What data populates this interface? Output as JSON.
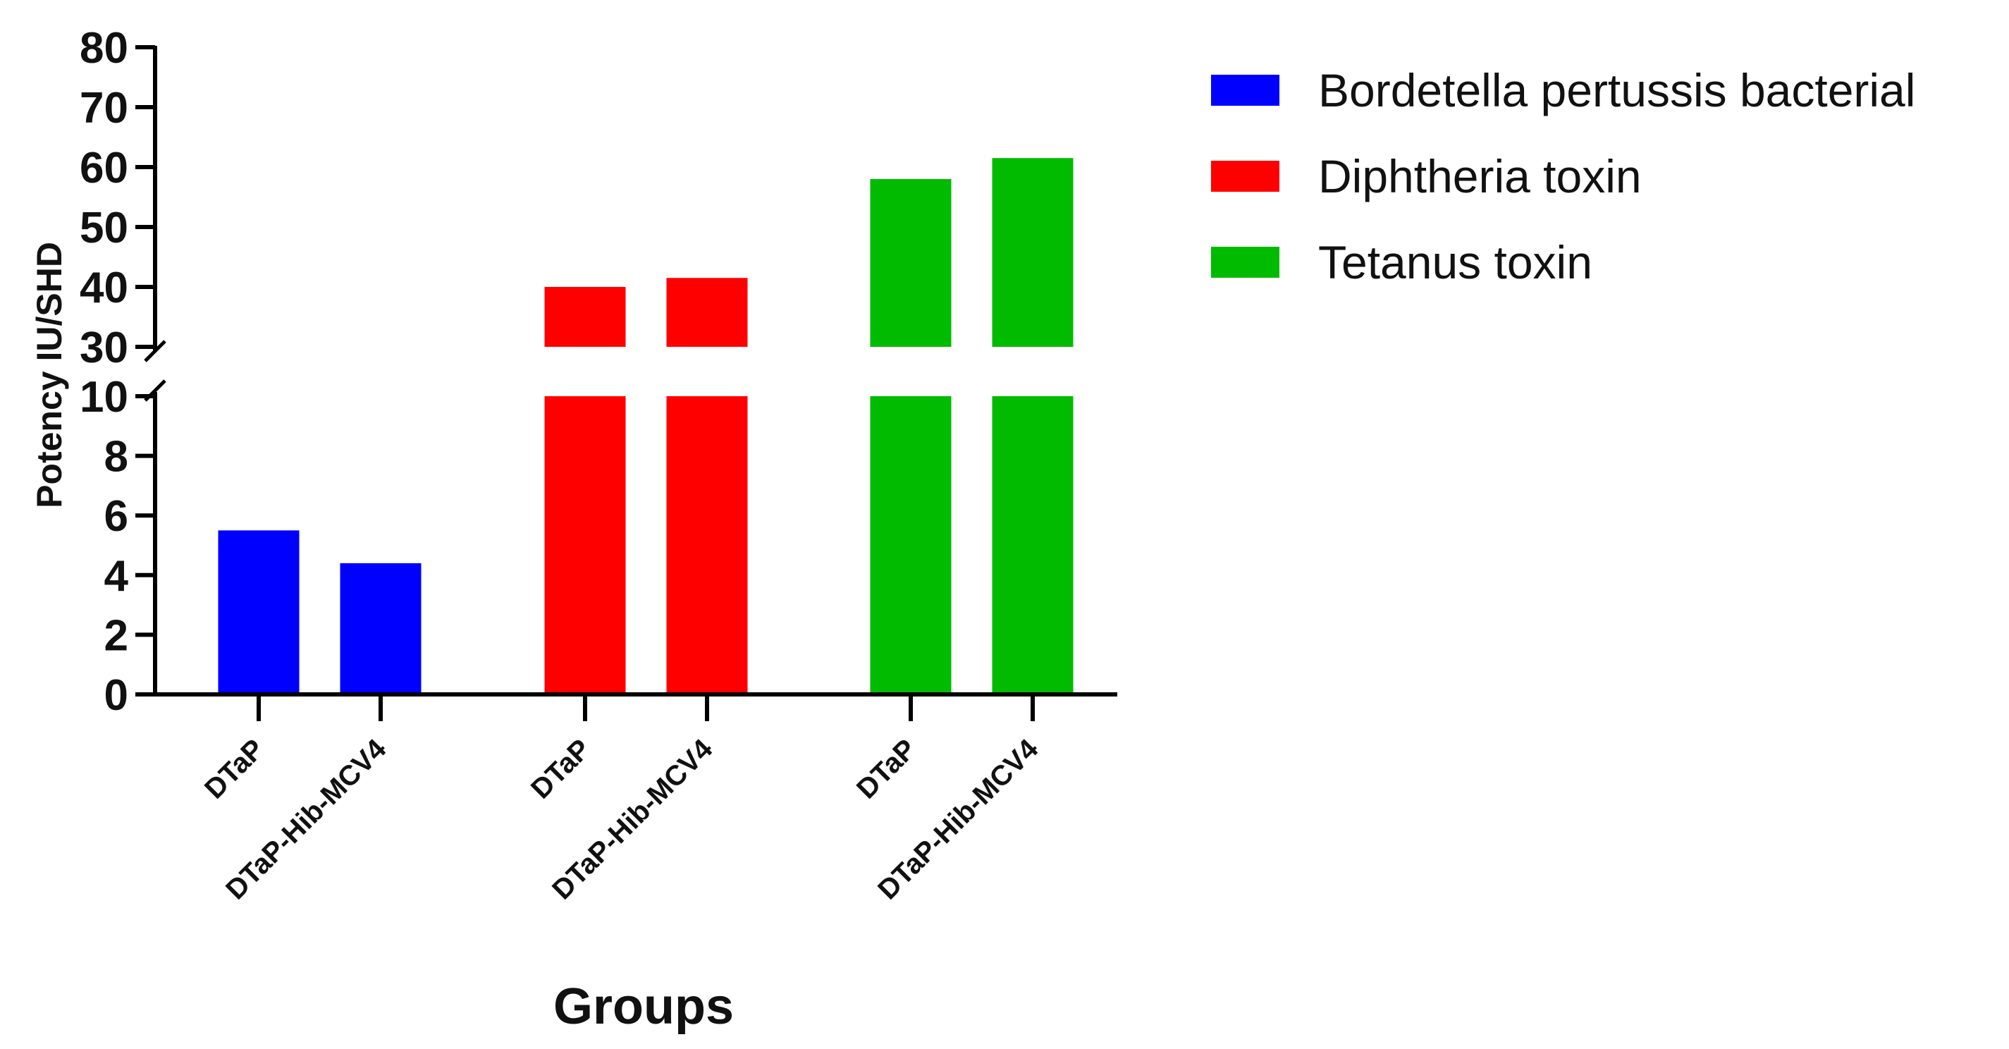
{
  "chart_data": {
    "type": "bar",
    "title": "",
    "xlabel": "Groups",
    "ylabel": "Potency IU/SHD",
    "groups": [
      {
        "series": "Bordetella pertussis bacterial",
        "categories": [
          "DTaP",
          "DTaP-Hib-MCV4"
        ],
        "values": [
          5.5,
          4.4
        ]
      },
      {
        "series": "Diphtheria toxin",
        "categories": [
          "DTaP",
          "DTaP-Hib-MCV4"
        ],
        "values": [
          40,
          41.5
        ]
      },
      {
        "series": "Tetanus toxin",
        "categories": [
          "DTaP",
          "DTaP-Hib-MCV4"
        ],
        "values": [
          58,
          61.5
        ]
      }
    ],
    "series": [
      {
        "name": "Bordetella pertussis bacterial",
        "color": "#0000ff"
      },
      {
        "name": "Diphtheria toxin",
        "color": "#ff0000"
      },
      {
        "name": "Tetanus toxin",
        "color": "#00bb00"
      }
    ],
    "y_axis": {
      "broken": true,
      "lower_segment": {
        "range": [
          0,
          10
        ],
        "ticks": [
          "0",
          "2",
          "4",
          "6",
          "8",
          "10"
        ]
      },
      "upper_segment": {
        "range": [
          30,
          80
        ],
        "ticks": [
          "30",
          "40",
          "50",
          "60",
          "70",
          "80"
        ]
      }
    },
    "legend_position": "top-right",
    "grid": false
  }
}
